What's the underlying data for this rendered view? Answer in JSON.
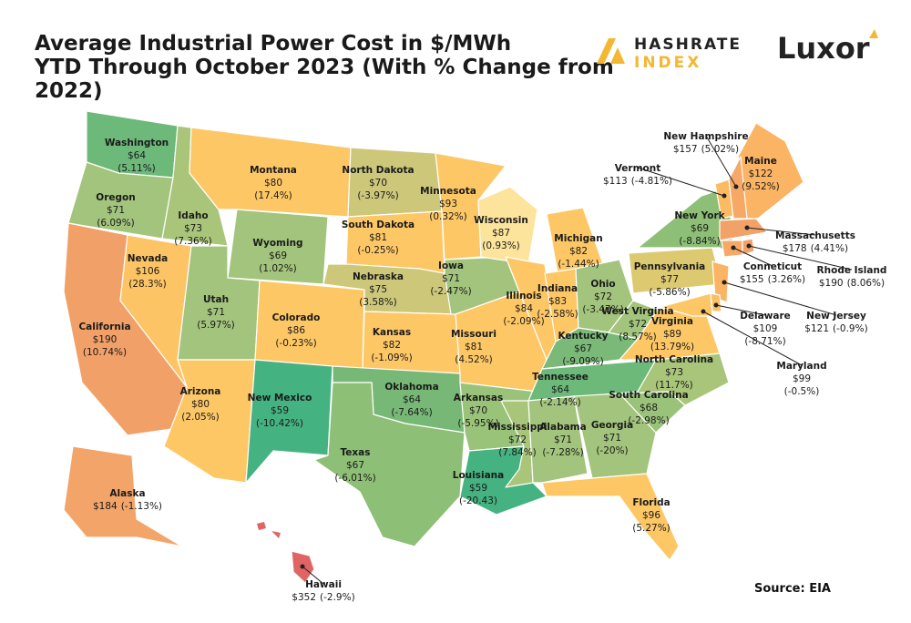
{
  "title": [
    "Average Industrial Power Cost in $/MWh",
    "YTD Through October 2023 (With % Change from",
    "2022)"
  ],
  "logos": {
    "hashrate": "HASHRATE",
    "index": "INDEX",
    "luxor": "Luxor"
  },
  "source": "Source: EIA",
  "states": [
    {
      "name": "Washington",
      "price": "$64",
      "change": "(5.11%)",
      "color": "#6cb97a"
    },
    {
      "name": "Oregon",
      "price": "$71",
      "change": "(6.09%)",
      "color": "#a3c47c"
    },
    {
      "name": "California",
      "price": "$190",
      "change": "(10.74%)",
      "color": "#f1a068"
    },
    {
      "name": "Nevada",
      "price": "$106",
      "change": "(28.3%)",
      "color": "#fdc465"
    },
    {
      "name": "Idaho",
      "price": "$73",
      "change": "(7.36%)",
      "color": "#a9c57a"
    },
    {
      "name": "Montana",
      "price": "$80",
      "change": "(17.4%)",
      "color": "#fdc765"
    },
    {
      "name": "Wyoming",
      "price": "$69",
      "change": "(1.02%)",
      "color": "#a3c47c"
    },
    {
      "name": "Utah",
      "price": "$71",
      "change": "(5.97%)",
      "color": "#a3c47c"
    },
    {
      "name": "Colorado",
      "price": "$86",
      "change": "(-0.23%)",
      "color": "#fdc765"
    },
    {
      "name": "Arizona",
      "price": "$80",
      "change": "(2.05%)",
      "color": "#fdc765"
    },
    {
      "name": "New Mexico",
      "price": "$59",
      "change": "(-10.42%)",
      "color": "#45b281"
    },
    {
      "name": "North Dakota",
      "price": "$70",
      "change": "(-3.97%)",
      "color": "#cdc77a"
    },
    {
      "name": "South Dakota",
      "price": "$81",
      "change": "(-0.25%)",
      "color": "#fdc765"
    },
    {
      "name": "Nebraska",
      "price": "$75",
      "change": "(3.58%)",
      "color": "#cdc77a"
    },
    {
      "name": "Kansas",
      "price": "$82",
      "change": "(-1.09%)",
      "color": "#fdc765"
    },
    {
      "name": "Oklahoma",
      "price": "$64",
      "change": "(-7.64%)",
      "color": "#77b876"
    },
    {
      "name": "Texas",
      "price": "$67",
      "change": "(-6.01%)",
      "color": "#8ebf76"
    },
    {
      "name": "Minnesota",
      "price": "$93",
      "change": "(0.32%)",
      "color": "#fdc765"
    },
    {
      "name": "Iowa",
      "price": "$71",
      "change": "(-2.47%)",
      "color": "#a3c47c"
    },
    {
      "name": "Missouri",
      "price": "$81",
      "change": "(4.52%)",
      "color": "#fdc765"
    },
    {
      "name": "Arkansas",
      "price": "$70",
      "change": "(-5.95%)",
      "color": "#9ac37a"
    },
    {
      "name": "Louisiana",
      "price": "$59",
      "change": "(-20.43)",
      "color": "#45b281"
    },
    {
      "name": "Wisconsin",
      "price": "$87",
      "change": "(0.93%)",
      "color": "#fde49c"
    },
    {
      "name": "Illinois",
      "price": "$84",
      "change": "(-2.09%)",
      "color": "#fdc765"
    },
    {
      "name": "Michigan",
      "price": "$82",
      "change": "(-1.44%)",
      "color": "#fdc765"
    },
    {
      "name": "Indiana",
      "price": "$83",
      "change": "(-2.58%)",
      "color": "#fdc765"
    },
    {
      "name": "Ohio",
      "price": "$72",
      "change": "(-3.47%)",
      "color": "#a3c47c"
    },
    {
      "name": "Kentucky",
      "price": "$67",
      "change": "(-9.09%)",
      "color": "#7ab977"
    },
    {
      "name": "Tennessee",
      "price": "$64",
      "change": "(-2.14%)",
      "color": "#6cb97a"
    },
    {
      "name": "Mississippi",
      "price": "$72",
      "change": "(7.84%)",
      "color": "#a9c57a"
    },
    {
      "name": "Alabama",
      "price": "$71",
      "change": "(-7.28%)",
      "color": "#a3c47c"
    },
    {
      "name": "Georgia",
      "price": "$71",
      "change": "(-20%)",
      "color": "#a3c47c"
    },
    {
      "name": "Florida",
      "price": "$96",
      "change": "(5.27%)",
      "color": "#fdc765"
    },
    {
      "name": "South Carolina",
      "price": "$68",
      "change": "(-2.98%)",
      "color": "#9ac37a"
    },
    {
      "name": "North Carolina",
      "price": "$73",
      "change": "(11.7%)",
      "color": "#a9c57a"
    },
    {
      "name": "Virginia",
      "price": "$89",
      "change": "(13.79%)",
      "color": "#fdc765"
    },
    {
      "name": "West Virginia",
      "price": "$72",
      "change": "(8.57%)",
      "color": "#a3c47c"
    },
    {
      "name": "Pennsylvania",
      "price": "$77",
      "change": "(-5.86%)",
      "color": "#dcc970"
    },
    {
      "name": "New York",
      "price": "$69",
      "change": "(-8.84%)",
      "color": "#8ebf76"
    },
    {
      "name": "Maine",
      "price": "$122",
      "change": "(9.52%)",
      "color": "#fbb464"
    },
    {
      "name": "Vermont",
      "price": "$113",
      "change": "(-4.81%)",
      "color": "#fcba63"
    },
    {
      "name": "New Hampshire",
      "price": "$157",
      "change": "(5.02%)",
      "color": "#f6a866"
    },
    {
      "name": "Massachusetts",
      "price": "$178",
      "change": "(4.41%)",
      "color": "#f2a167"
    },
    {
      "name": "Conneticut",
      "price": "$155",
      "change": "(3.26%)",
      "color": "#f6a866"
    },
    {
      "name": "Rhode Island",
      "price": "$190",
      "change": "(8.06%)",
      "color": "#f1a068"
    },
    {
      "name": "New Jersey",
      "price": "$121",
      "change": "(-0.9%)",
      "color": "#fbb464"
    },
    {
      "name": "Delaware",
      "price": "$109",
      "change": "(-8.71%)",
      "color": "#fcc064"
    },
    {
      "name": "Maryland",
      "price": "$99",
      "change": "(-0.5%)",
      "color": "#fdc765"
    },
    {
      "name": "Alaska",
      "price": "$184",
      "change": "(-1.13%)",
      "color": "#f3a468"
    },
    {
      "name": "Hawaii",
      "price": "$352",
      "change": "(-2.9%)",
      "color": "#e06464"
    }
  ]
}
